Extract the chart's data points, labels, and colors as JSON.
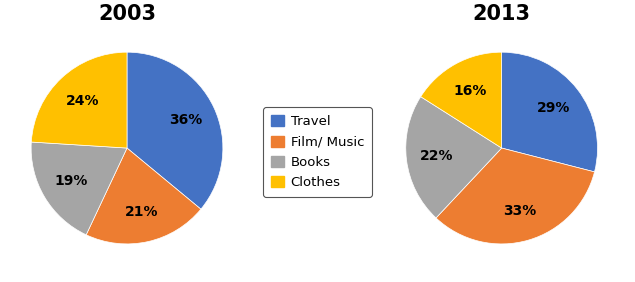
{
  "title_2003": "2003",
  "title_2013": "2013",
  "labels": [
    "Travel",
    "Film/ Music",
    "Books",
    "Clothes"
  ],
  "values_2003": [
    36,
    21,
    19,
    24
  ],
  "values_2013": [
    29,
    33,
    22,
    16
  ],
  "colors": [
    "#4472C4",
    "#ED7D31",
    "#A5A5A5",
    "#FFC000"
  ],
  "title_fontsize": 15,
  "label_fontsize": 10,
  "legend_fontsize": 9.5,
  "background_color": "#FFFFFF",
  "startangle_2003": 90,
  "startangle_2013": 90
}
